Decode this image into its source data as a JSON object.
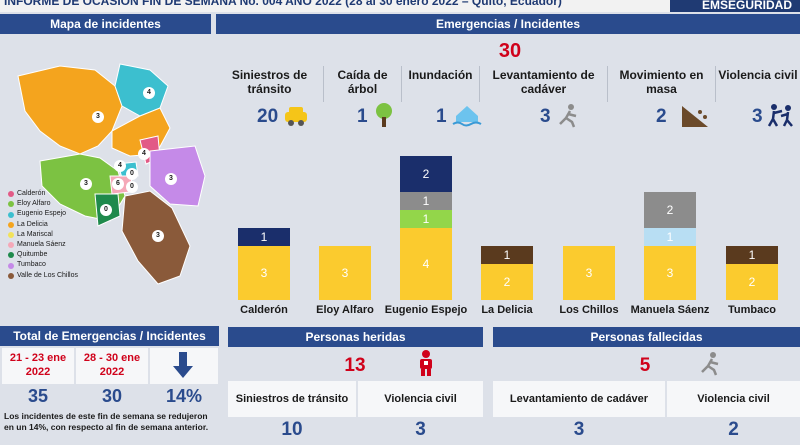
{
  "header": {
    "title": "INFORME DE OCASIÓN FIN DE SEMANA No. 004 AÑO 2022 (28 al 30 enero 2022 – Quito, Ecuador)",
    "brand": "EMSEGURIDAD"
  },
  "map": {
    "title": "Mapa de incidentes",
    "legend": [
      {
        "label": "Calderón",
        "color": "#e25a86"
      },
      {
        "label": "Eloy Alfaro",
        "color": "#7cc242"
      },
      {
        "label": "Eugenio Espejo",
        "color": "#3cbfcf"
      },
      {
        "label": "La Delicia",
        "color": "#f4a41e"
      },
      {
        "label": "La Mariscal",
        "color": "#f2e25a"
      },
      {
        "label": "Manuela Sáenz",
        "color": "#f5a8b8"
      },
      {
        "label": "Quitumbe",
        "color": "#1f8a4c"
      },
      {
        "label": "Tumbaco",
        "color": "#c58ae8"
      },
      {
        "label": "Valle de Los Chillos",
        "color": "#8a5a3a"
      }
    ],
    "labels": [
      "4",
      "3",
      "4",
      "4",
      "0",
      "6",
      "0",
      "3",
      "3",
      "0",
      "3"
    ]
  },
  "emergencias": {
    "title": "Emergencias / Incidentes",
    "total": "30",
    "categories": [
      {
        "label": "Siniestros de tránsito",
        "count": "20",
        "icon": "car-icon"
      },
      {
        "label": "Caída de árbol",
        "count": "1",
        "icon": "tree-icon"
      },
      {
        "label": "Inundación",
        "count": "1",
        "icon": "flood-icon"
      },
      {
        "label": "Levantamiento de cadáver",
        "count": "3",
        "icon": "body-icon"
      },
      {
        "label": "Movimiento en masa",
        "count": "2",
        "icon": "landslide-icon"
      },
      {
        "label": "Violencia civil",
        "count": "3",
        "icon": "fight-icon"
      }
    ]
  },
  "chart_data": {
    "type": "bar",
    "stacked": true,
    "categories": [
      "Calderón",
      "Eloy Alfaro",
      "Eugenio Espejo",
      "La Delicia",
      "Los Chillos",
      "Manuela Sáenz",
      "Tumbaco"
    ],
    "series": [
      {
        "color": "#fbcb2e",
        "values": [
          3,
          3,
          4,
          2,
          3,
          3,
          2
        ]
      },
      {
        "color": "#93d64a",
        "values": [
          0,
          0,
          1,
          0,
          0,
          0,
          0
        ]
      },
      {
        "color": "#b8def3",
        "values": [
          0,
          0,
          0,
          0,
          0,
          1,
          0
        ]
      },
      {
        "color": "#5a3a1e",
        "values": [
          0,
          0,
          0,
          1,
          0,
          0,
          1
        ]
      },
      {
        "color": "#8c8c8c",
        "values": [
          0,
          0,
          1,
          0,
          0,
          2,
          0
        ]
      },
      {
        "color": "#1a2e6b",
        "values": [
          1,
          0,
          2,
          0,
          0,
          0,
          0
        ]
      }
    ]
  },
  "totales": {
    "title": "Total de Emergencias / Incidentes",
    "periods": [
      {
        "date": "21 - 23 ene 2022",
        "value": "35"
      },
      {
        "date": "28 - 30 ene 2022",
        "value": "30"
      }
    ],
    "change": "14%",
    "note": "Los incidentes de este fin de semana se redujeron en un 14%, con respecto al fin de semana anterior."
  },
  "heridas": {
    "title": "Personas heridas",
    "total": "13",
    "items": [
      {
        "label": "Siniestros de tránsito",
        "value": "10"
      },
      {
        "label": "Violencia civil",
        "value": "3"
      }
    ]
  },
  "fallecidas": {
    "title": "Personas fallecidas",
    "total": "5",
    "items": [
      {
        "label": "Levantamiento de cadáver",
        "value": "3"
      },
      {
        "label": "Violencia civil",
        "value": "2"
      }
    ]
  }
}
